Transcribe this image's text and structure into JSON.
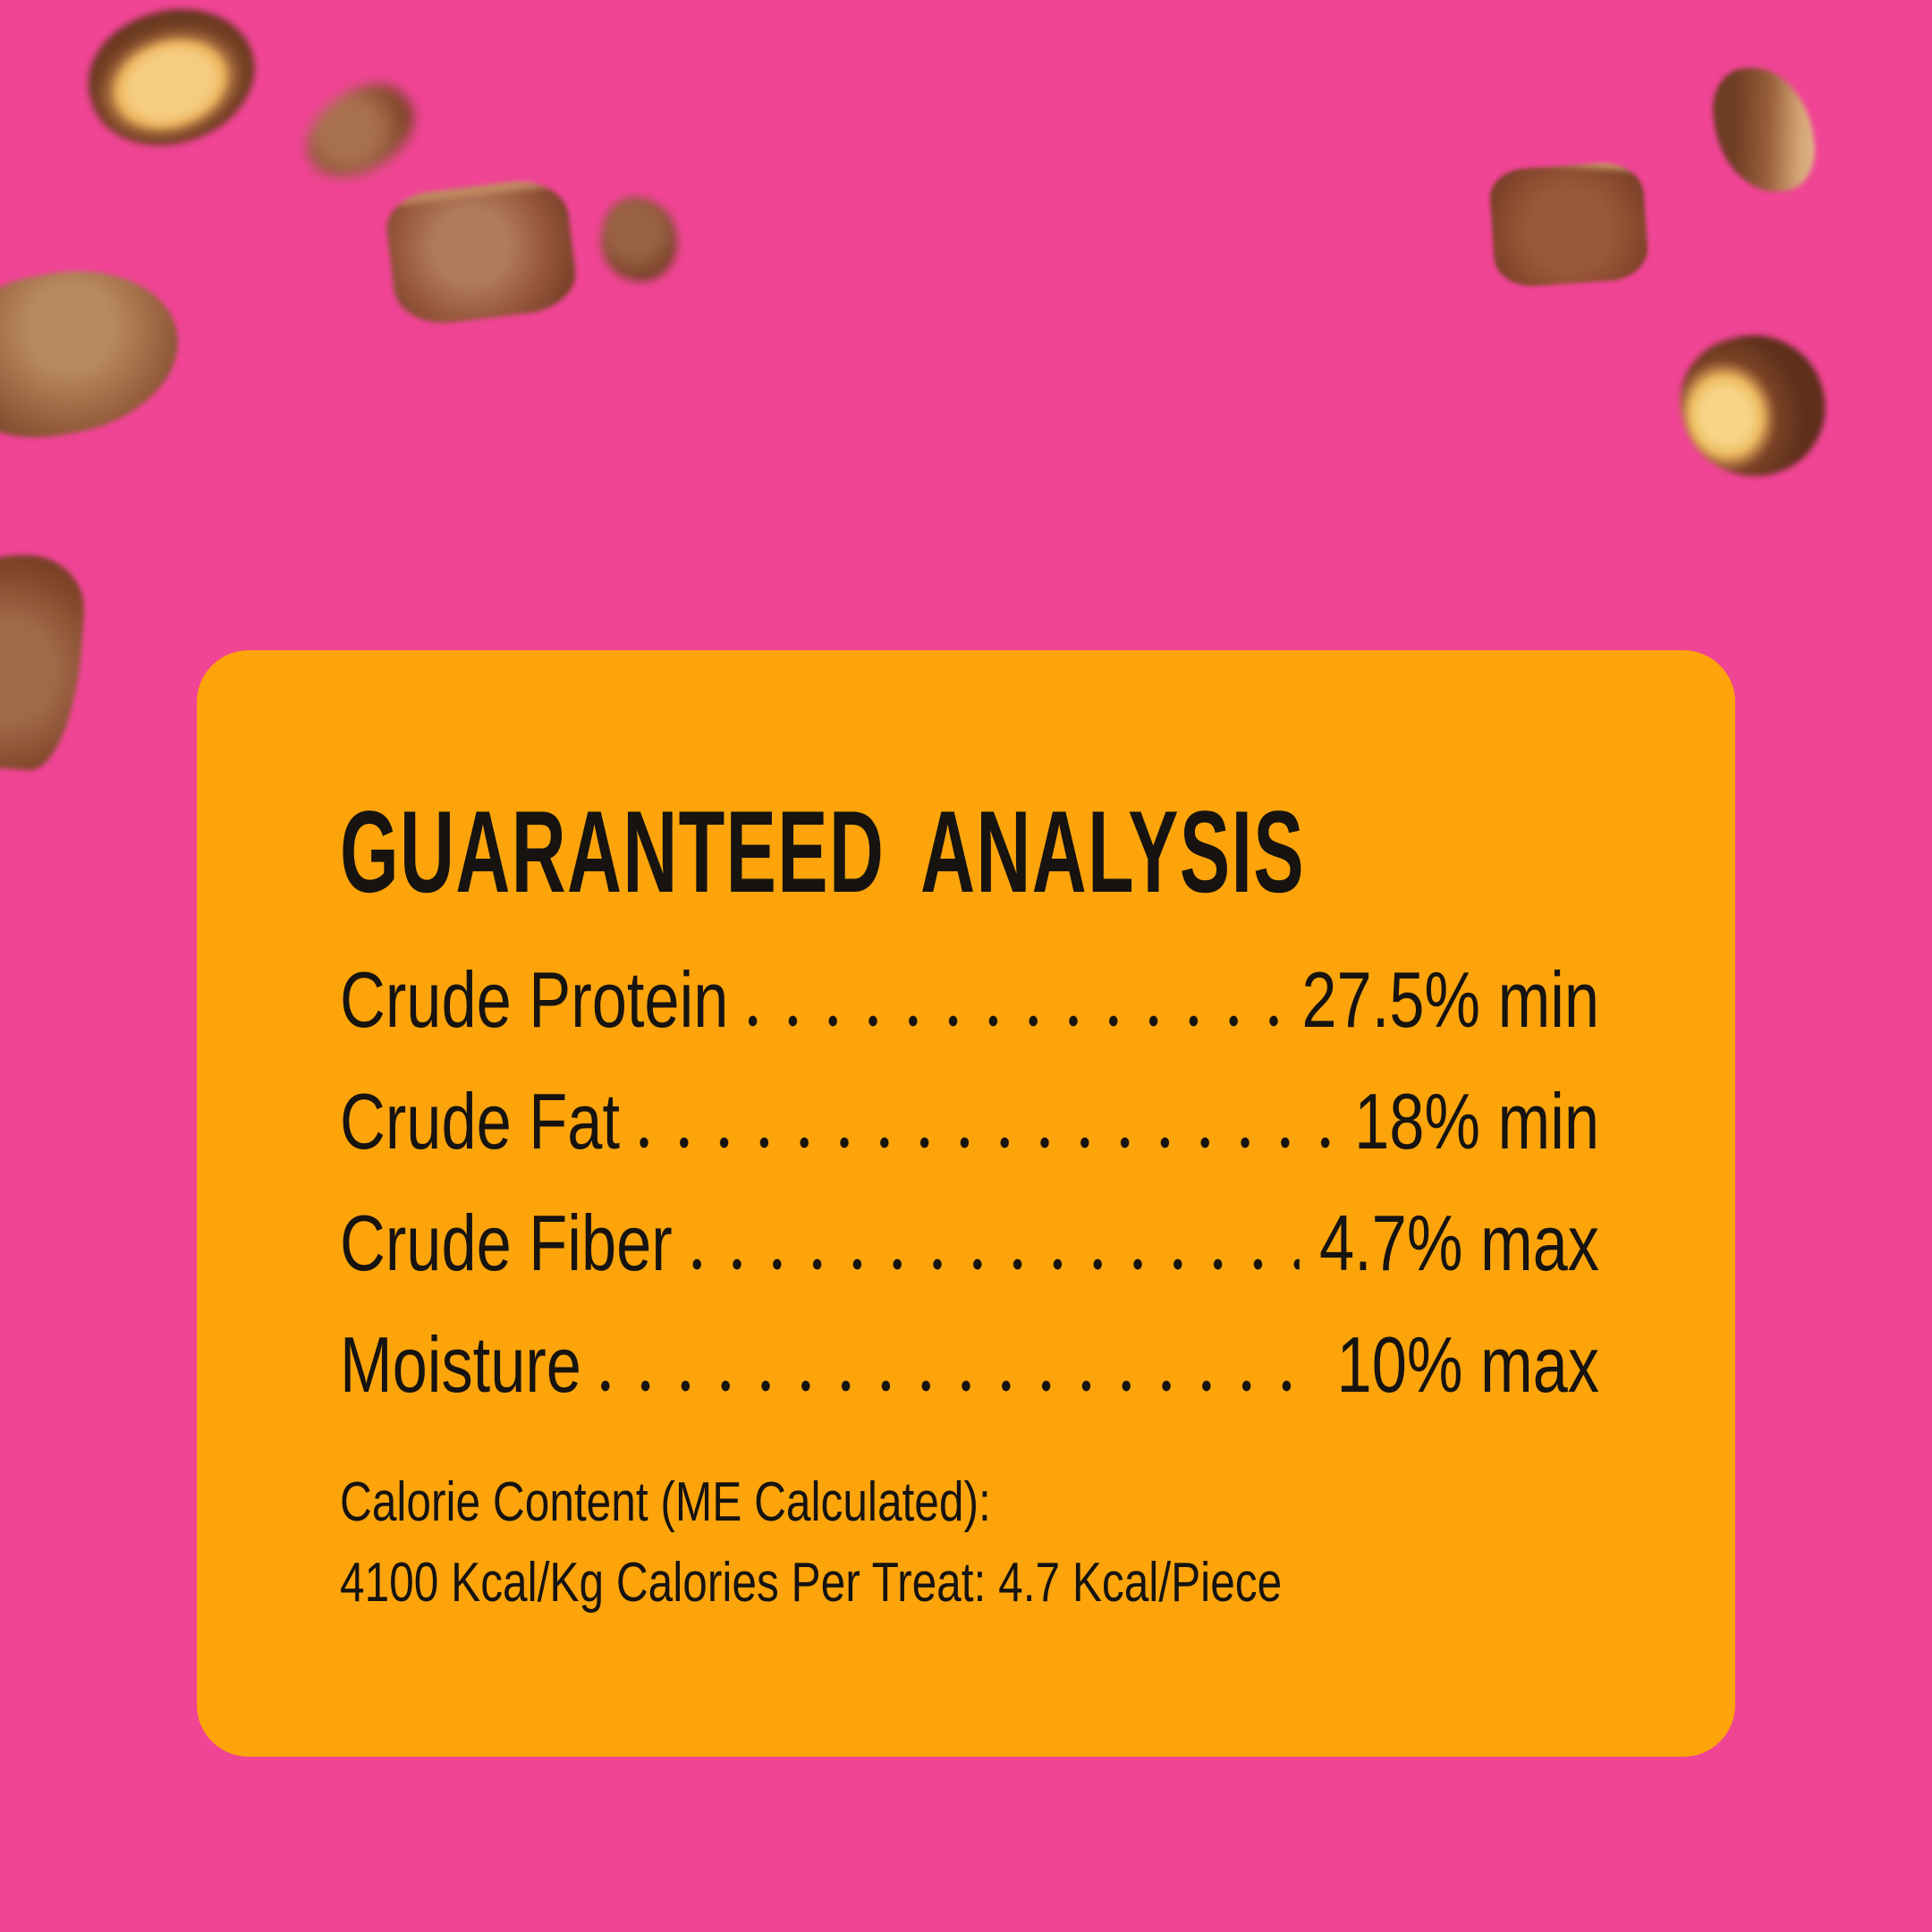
{
  "colors": {
    "background_pink": "#F04494",
    "card_orange": "#FCA40A",
    "text_black": "#161310"
  },
  "analysis_card": {
    "title": "GUARANTEED ANALYSIS",
    "rows": [
      {
        "label": "Crude Protein",
        "value": "27.5% min"
      },
      {
        "label": "Crude Fat",
        "value": "18% min"
      },
      {
        "label": "Crude Fiber",
        "value": "4.7% max"
      },
      {
        "label": "Moisture",
        "value": "10% max"
      }
    ],
    "calorie_heading": "Calorie Content (ME Calculated):",
    "calorie_detail": "4100 Kcal/Kg Calories Per Treat: 4.7 Kcal/Piece"
  },
  "decorations": {
    "treat_piece_count": 9
  }
}
